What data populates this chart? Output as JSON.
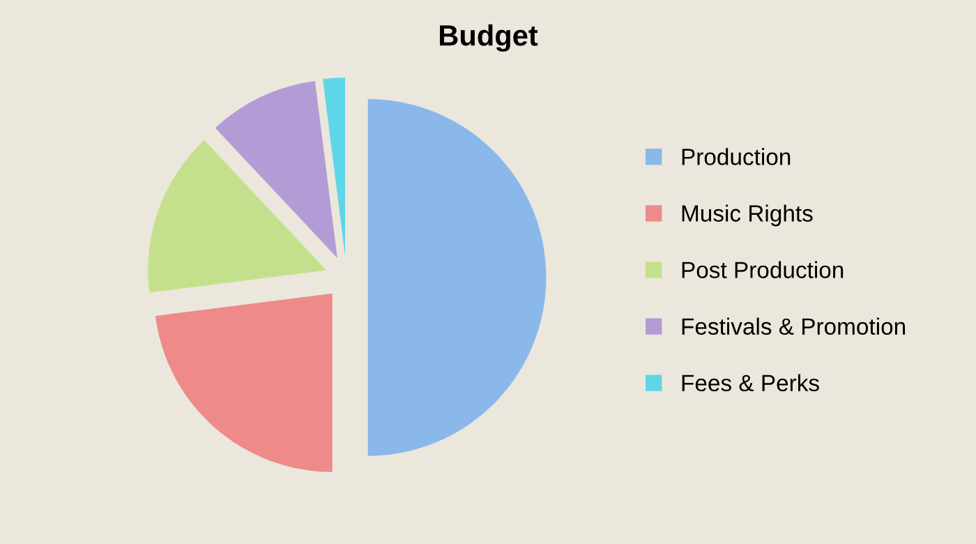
{
  "chart_data": {
    "type": "pie",
    "title": "Budget",
    "categories": [
      "Production",
      "Music Rights",
      "Post Production",
      "Festivals & Promotion",
      "Fees & Perks"
    ],
    "values": [
      50,
      23,
      15,
      10,
      2
    ],
    "colors": [
      "#8ab8ea",
      "#ef8a8a",
      "#c5e08c",
      "#b39cd6",
      "#5ed6e8"
    ],
    "legend": "right"
  }
}
